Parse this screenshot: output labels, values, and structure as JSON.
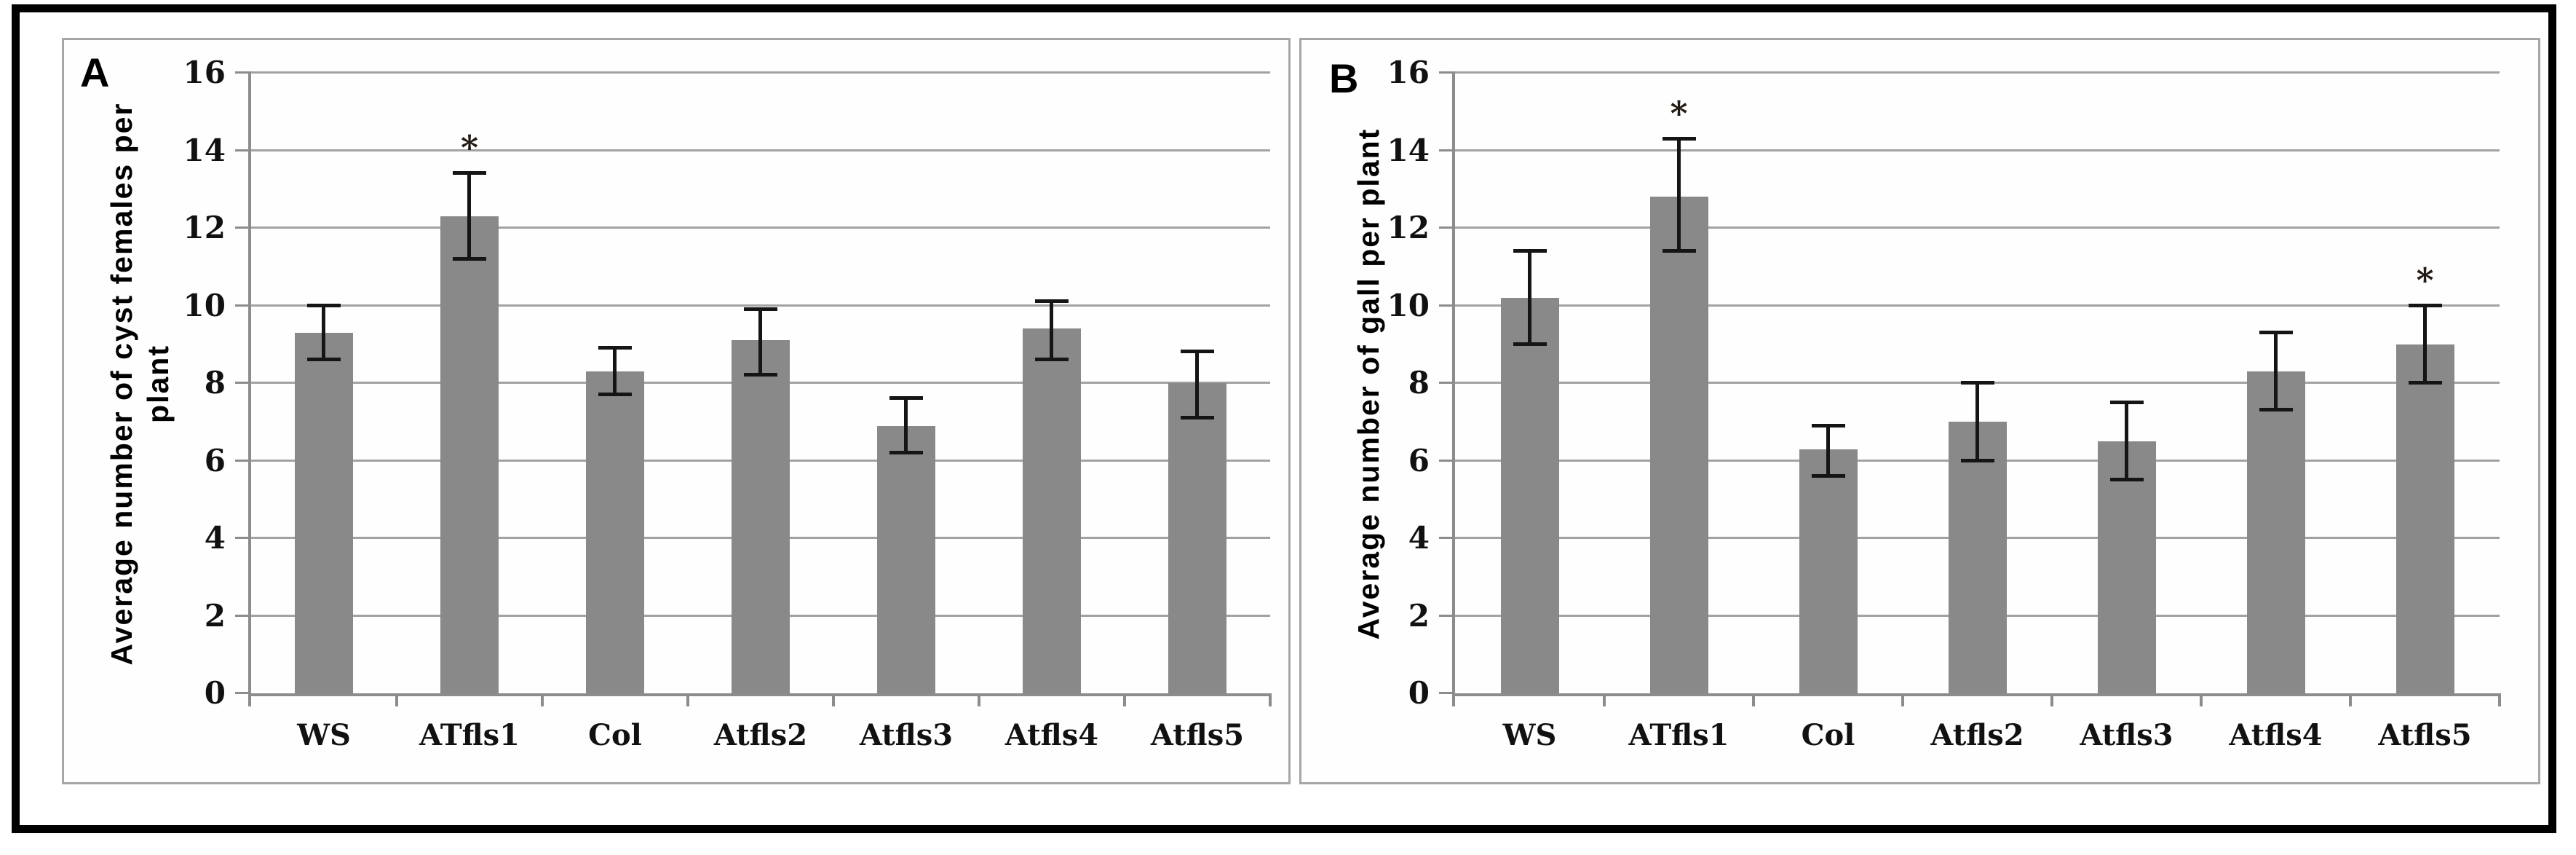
{
  "figure": {
    "background_color": "#ffffff",
    "frame_color": "#000000",
    "panel_border_color": "#a6a6a6"
  },
  "style": {
    "bar_color": "#898989",
    "gridline_color": "#a2a2a2",
    "axis_color": "#8c8c8c",
    "error_bar_color": "#151515",
    "text_color": "#000000"
  },
  "chart_data": [
    {
      "panel": "A",
      "type": "bar",
      "title": "",
      "xlabel": "",
      "ylabel": "Average number of cyst females per plant",
      "ylabel_lines": [
        "Average number of cyst females per",
        "plant"
      ],
      "categories": [
        "WS",
        "ATfls1",
        "Col",
        "Atfls2",
        "Atfls3",
        "Atfls4",
        "Atfls5"
      ],
      "values": [
        9.3,
        12.3,
        8.3,
        9.1,
        6.9,
        9.4,
        8.0
      ],
      "error_high": [
        10.0,
        13.4,
        8.9,
        9.9,
        7.6,
        10.1,
        8.8
      ],
      "error_low": [
        8.6,
        11.2,
        7.7,
        8.2,
        6.2,
        8.6,
        7.1
      ],
      "significance": [
        "",
        "*",
        "",
        "",
        "",
        "",
        ""
      ],
      "ylim": [
        0,
        16
      ],
      "ytick_step": 2,
      "yticks": [
        0,
        2,
        4,
        6,
        8,
        10,
        12,
        14,
        16
      ],
      "grid": true,
      "legend": "none"
    },
    {
      "panel": "B",
      "type": "bar",
      "title": "",
      "xlabel": "",
      "ylabel": "Average number of gall per plant",
      "ylabel_lines": [
        "Average number of gall per plant"
      ],
      "categories": [
        "WS",
        "ATfls1",
        "Col",
        "Atfls2",
        "Atfls3",
        "Atfls4",
        "Atfls5"
      ],
      "values": [
        10.2,
        12.8,
        6.3,
        7.0,
        6.5,
        8.3,
        9.0
      ],
      "error_high": [
        11.4,
        14.3,
        6.9,
        8.0,
        7.5,
        9.3,
        10.0
      ],
      "error_low": [
        9.0,
        11.4,
        5.6,
        6.0,
        5.5,
        7.3,
        8.0
      ],
      "significance": [
        "",
        "*",
        "",
        "",
        "",
        "",
        "*"
      ],
      "ylim": [
        0,
        16
      ],
      "ytick_step": 2,
      "yticks": [
        0,
        2,
        4,
        6,
        8,
        10,
        12,
        14,
        16
      ],
      "grid": true,
      "legend": "none"
    }
  ]
}
